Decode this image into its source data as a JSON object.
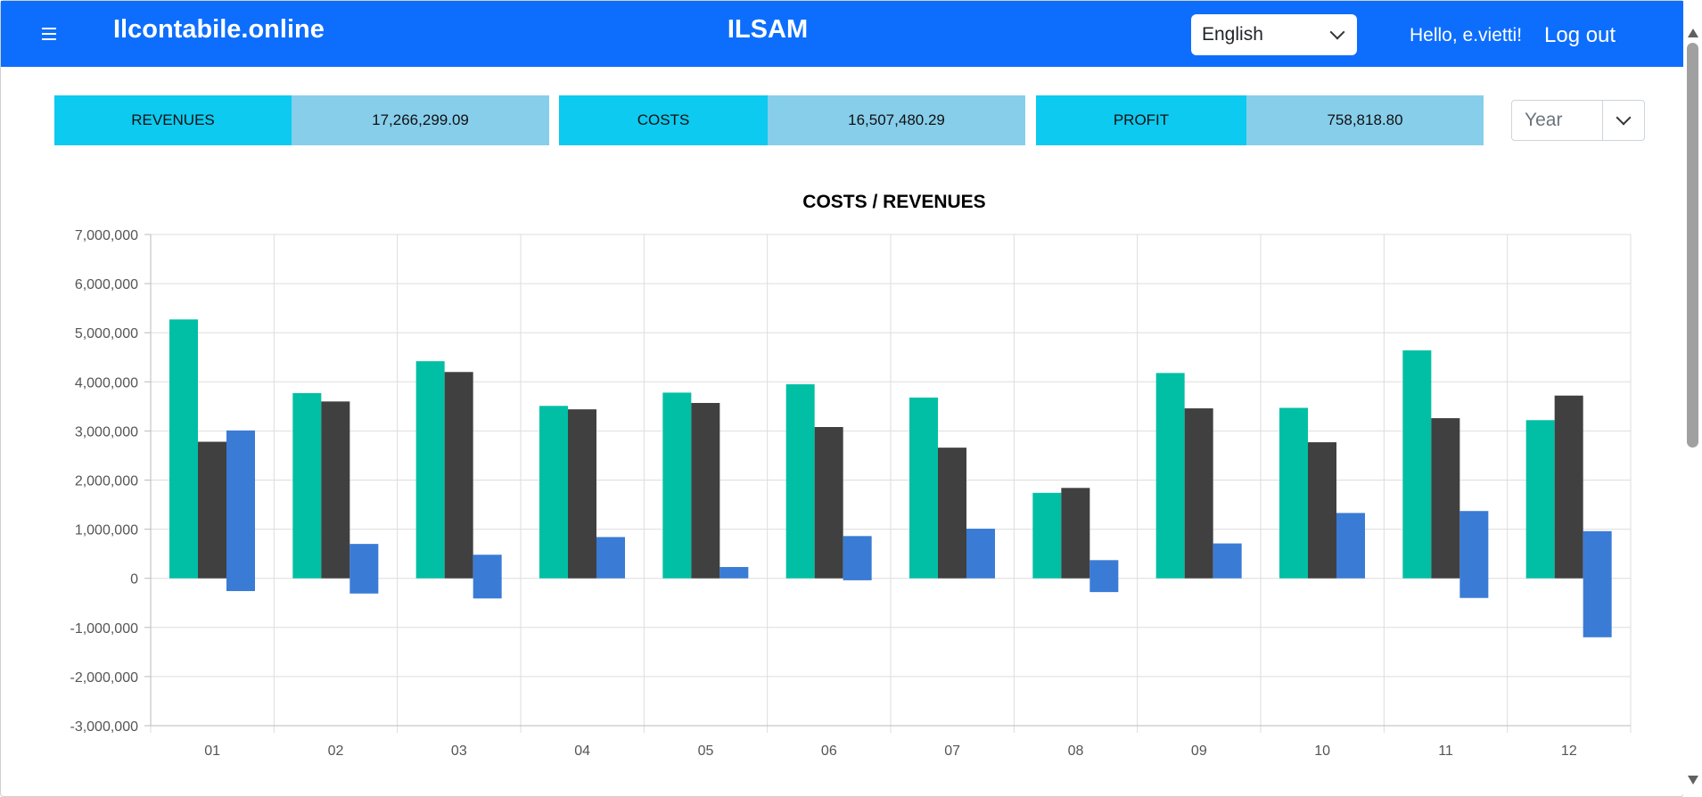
{
  "header": {
    "brand": "Ilcontabile.online",
    "title": "ILSAM",
    "language": "English",
    "greeting": "Hello, e.vietti!",
    "logout": "Log out"
  },
  "kpis": {
    "revenues": {
      "label": "REVENUES",
      "value": "17,266,299.09"
    },
    "costs": {
      "label": "COSTS",
      "value": "16,507,480.29"
    },
    "profit": {
      "label": "PROFIT",
      "value": "758,818.80"
    }
  },
  "period_select": {
    "value": "Year"
  },
  "colors": {
    "header_bg": "#0d6efd",
    "kpi_label": "#0dcaf0",
    "kpi_value": "#87ceeb",
    "revenues": "#00bfa5",
    "costs": "#404040",
    "profit": "#3a7bd5"
  },
  "chart_data": {
    "type": "bar",
    "title": "COSTS / REVENUES",
    "categories": [
      "01",
      "02",
      "03",
      "04",
      "05",
      "06",
      "07",
      "08",
      "09",
      "10",
      "11",
      "12"
    ],
    "ylim": [
      -3000000,
      7000000
    ],
    "yticks": [
      7000000,
      6000000,
      5000000,
      4000000,
      3000000,
      2000000,
      1000000,
      0,
      -1000000,
      -2000000,
      -3000000
    ],
    "ytick_labels": [
      "7,000,000",
      "6,000,000",
      "5,000,000",
      "4,000,000",
      "3,000,000",
      "2,000,000",
      "1,000,000",
      "0",
      "-1,000,000",
      "-2,000,000",
      "-3,000,000"
    ],
    "grid": true,
    "series": [
      {
        "key": "revenues",
        "color": "#00bfa5",
        "values": [
          5270000,
          3770000,
          4420000,
          3510000,
          3780000,
          3950000,
          3680000,
          1740000,
          4180000,
          3470000,
          4640000,
          3220000
        ]
      },
      {
        "key": "costs",
        "color": "#404040",
        "values": [
          2780000,
          3600000,
          4200000,
          3440000,
          3570000,
          3080000,
          2660000,
          1840000,
          3460000,
          2770000,
          3260000,
          3720000
        ]
      },
      {
        "key": "profit",
        "color": "#3a7bd5",
        "ranges": [
          [
            -260000,
            3010000
          ],
          [
            -310000,
            700000
          ],
          [
            -410000,
            480000
          ],
          [
            0,
            840000
          ],
          [
            0,
            230000
          ],
          [
            -40000,
            860000
          ],
          [
            0,
            1010000
          ],
          [
            -280000,
            370000
          ],
          [
            0,
            710000
          ],
          [
            0,
            1330000
          ],
          [
            -400000,
            1370000
          ],
          [
            -1200000,
            960000
          ]
        ]
      }
    ]
  }
}
